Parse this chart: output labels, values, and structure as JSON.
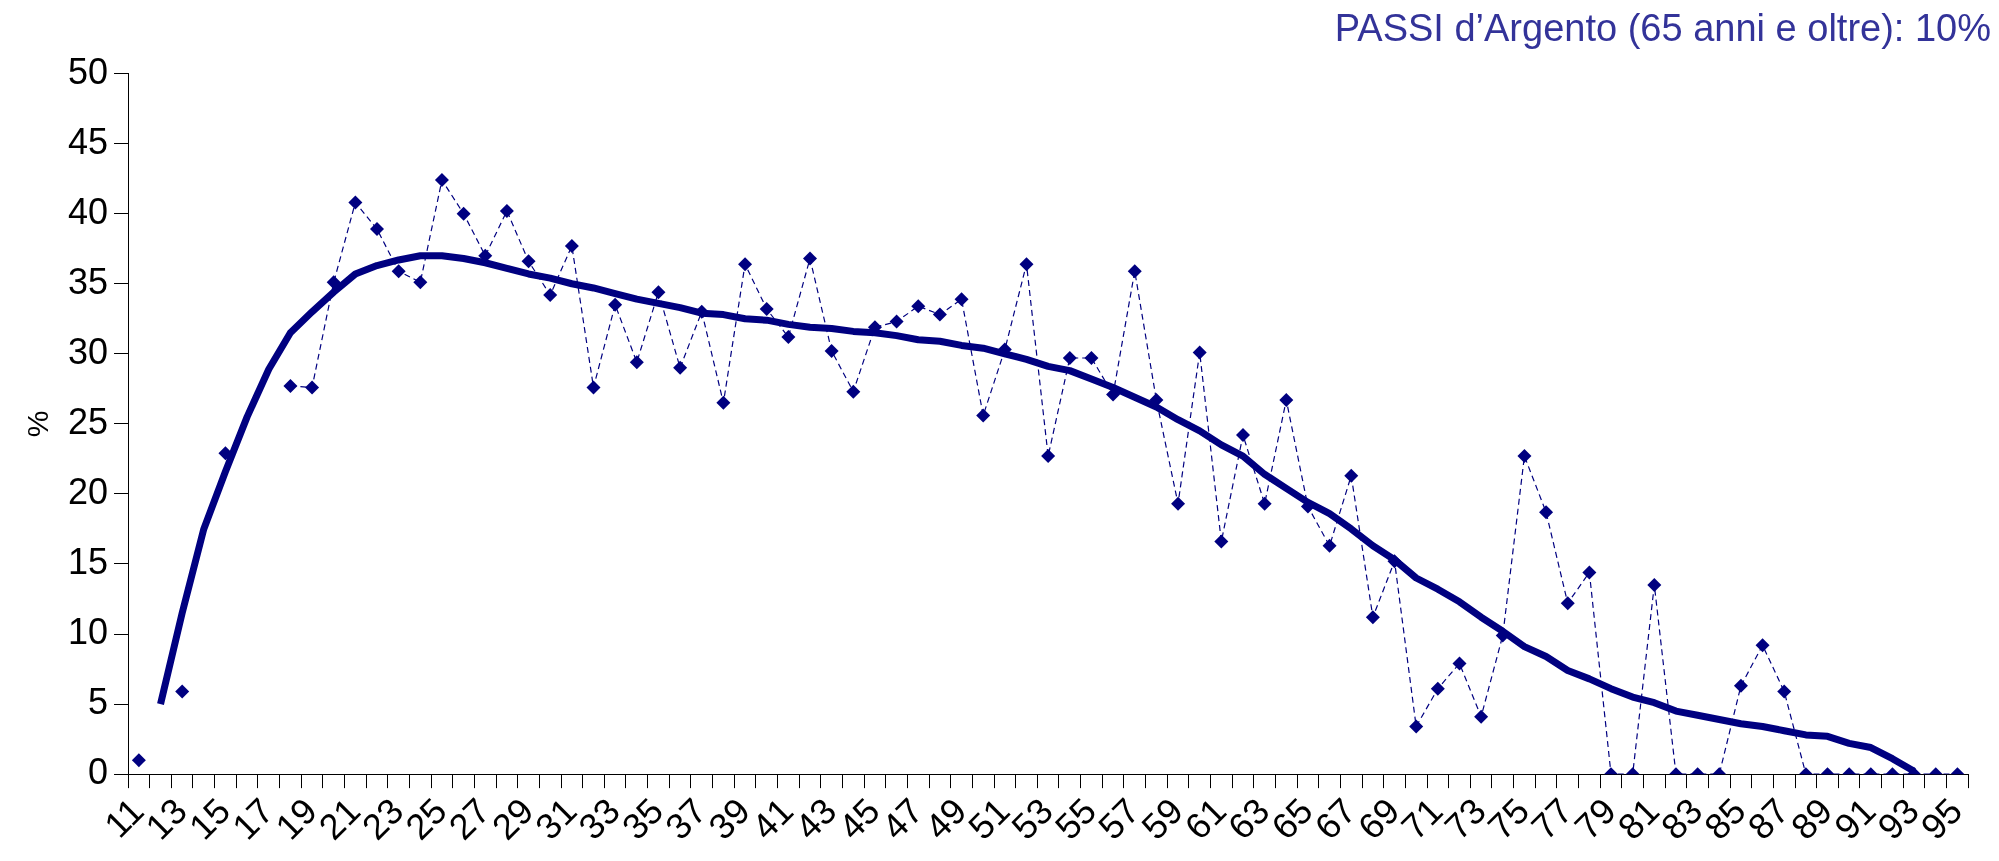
{
  "chart_data": {
    "type": "line",
    "title": "PASSI d’Argento (65 anni e oltre): 10%",
    "ylabel": "%",
    "categories": [
      "11",
      null,
      "13",
      null,
      "15",
      null,
      "17",
      null,
      "19",
      null,
      "21",
      null,
      "23",
      null,
      "25",
      null,
      "27",
      null,
      "29",
      null,
      "31",
      null,
      "33",
      null,
      "35",
      null,
      "37",
      null,
      "39",
      null,
      "41",
      null,
      "43",
      null,
      "45",
      null,
      "47",
      null,
      "49",
      null,
      "51",
      null,
      "53",
      null,
      "55",
      null,
      "57",
      null,
      "59",
      null,
      "61",
      null,
      "63",
      null,
      "65",
      null,
      "67",
      null,
      "69",
      null,
      "71",
      null,
      "73",
      null,
      "75",
      null,
      "77",
      null,
      "79",
      null,
      "81",
      null,
      "83",
      null,
      "85",
      null,
      "87",
      null,
      "89",
      null,
      "91",
      null,
      "93",
      null,
      "95"
    ],
    "series": [
      {
        "color": "#000080",
        "marker": "diamond",
        "line_style": "dashed",
        "values": [
          1.0,
          null,
          5.9,
          null,
          22.9,
          null,
          null,
          27.7,
          27.6,
          35.1,
          40.8,
          38.9,
          35.9,
          35.1,
          42.4,
          40.0,
          37.0,
          40.2,
          36.6,
          34.2,
          37.7,
          27.6,
          33.5,
          29.4,
          34.4,
          29.0,
          33.0,
          26.5,
          36.4,
          33.2,
          31.2,
          36.8,
          30.2,
          27.3,
          31.9,
          32.3,
          33.4,
          32.8,
          33.9,
          25.6,
          30.3,
          36.4,
          22.7,
          29.7,
          29.7,
          27.1,
          35.9,
          26.7,
          19.3,
          30.1,
          16.6,
          24.2,
          19.3,
          26.7,
          19.1,
          16.3,
          21.3,
          11.2,
          15.2,
          3.4,
          6.1,
          7.9,
          4.1,
          9.9,
          22.7,
          18.7,
          12.2,
          14.4,
          0,
          0,
          13.5,
          0,
          0,
          0,
          6.3,
          9.2,
          5.9,
          0,
          0,
          0,
          0,
          0,
          0,
          0,
          0
        ]
      },
      {
        "color": "#000080",
        "marker": "none",
        "line_style": "solid",
        "values": [
          null,
          5.0,
          11.5,
          17.5,
          21.6,
          25.5,
          28.9,
          31.5,
          33.0,
          34.4,
          35.7,
          36.3,
          36.7,
          37.0,
          37.0,
          36.8,
          36.5,
          36.1,
          35.7,
          35.4,
          35.0,
          34.7,
          34.3,
          33.9,
          33.6,
          33.3,
          32.9,
          32.8,
          32.5,
          32.4,
          32.1,
          31.9,
          31.8,
          31.6,
          31.5,
          31.3,
          31.0,
          30.9,
          30.6,
          30.4,
          30.0,
          29.6,
          29.1,
          28.8,
          28.2,
          27.6,
          26.9,
          26.2,
          25.3,
          24.5,
          23.5,
          22.7,
          21.4,
          20.4,
          19.4,
          18.6,
          17.5,
          16.3,
          15.3,
          14.0,
          13.2,
          12.3,
          11.2,
          10.2,
          9.1,
          8.4,
          7.4,
          6.8,
          6.1,
          5.5,
          5.1,
          4.5,
          4.2,
          3.9,
          3.6,
          3.4,
          3.1,
          2.8,
          2.7,
          2.2,
          1.9,
          1.1,
          0.2,
          null,
          null
        ]
      }
    ],
    "ylim": [
      0,
      50
    ],
    "yticks": [
      0,
      5,
      10,
      15,
      20,
      25,
      30,
      35,
      40,
      45,
      50
    ],
    "grid": false,
    "legend": false
  }
}
